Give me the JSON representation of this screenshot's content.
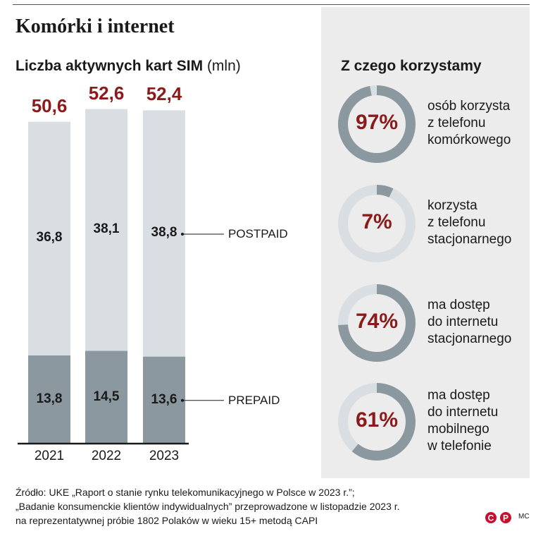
{
  "title": "Komórki i internet",
  "bar_section": {
    "title": "Liczba aktywnych kart SIM",
    "unit": "(mln)"
  },
  "donut_section": {
    "title": "Z czego korzystamy"
  },
  "colors": {
    "postpaid": "#d9dee2",
    "prepaid": "#8c989f",
    "total_text": "#8b1a1a",
    "donut_fill": "#8c989f",
    "donut_rest": "#d9dee2",
    "panel_bg": "#ececec"
  },
  "chart_data": [
    {
      "type": "bar",
      "stacked": true,
      "title": "Liczba aktywnych kart SIM",
      "ylabel": "(mln)",
      "categories": [
        "2021",
        "2022",
        "2023"
      ],
      "totals": [
        "50,6",
        "52,6",
        "52,4"
      ],
      "total_values": [
        50.6,
        52.6,
        52.4
      ],
      "series": [
        {
          "name": "PREPAID",
          "values": [
            13.8,
            14.5,
            13.6
          ],
          "labels": [
            "13,8",
            "14,5",
            "13,6"
          ]
        },
        {
          "name": "POSTPAID",
          "values": [
            36.8,
            38.1,
            38.8
          ],
          "labels": [
            "36,8",
            "38,1",
            "38,8"
          ]
        }
      ],
      "legend_placement": "right of bars",
      "grid": false
    },
    {
      "type": "pie",
      "variant": "donut",
      "title": "Z czego korzystamy",
      "items": [
        {
          "value": 97,
          "label": "97%",
          "desc": [
            "osób korzysta",
            "z telefonu",
            "komórkowego"
          ]
        },
        {
          "value": 7,
          "label": "7%",
          "desc": [
            "korzysta",
            "z telefonu",
            "stacjonarnego"
          ]
        },
        {
          "value": 74,
          "label": "74%",
          "desc": [
            "ma dostęp",
            "do internetu",
            "stacjonarnego"
          ]
        },
        {
          "value": 61,
          "label": "61%",
          "desc": [
            "ma dostęp",
            "do internetu",
            "mobilnego",
            "w telefonie"
          ]
        }
      ]
    }
  ],
  "source": [
    "Źródło: UKE „Raport o stanie rynku telekomunikacyjnego w Polsce w 2023 r.”;",
    "„Badanie konsumenckie klientów indywidualnych” przeprowadzone w listopadzie 2023 r.",
    "na reprezentatywnej próbie 1802 Polaków w wieku 15+ metodą CAPI"
  ],
  "logo_text": "CP",
  "author": "MC"
}
